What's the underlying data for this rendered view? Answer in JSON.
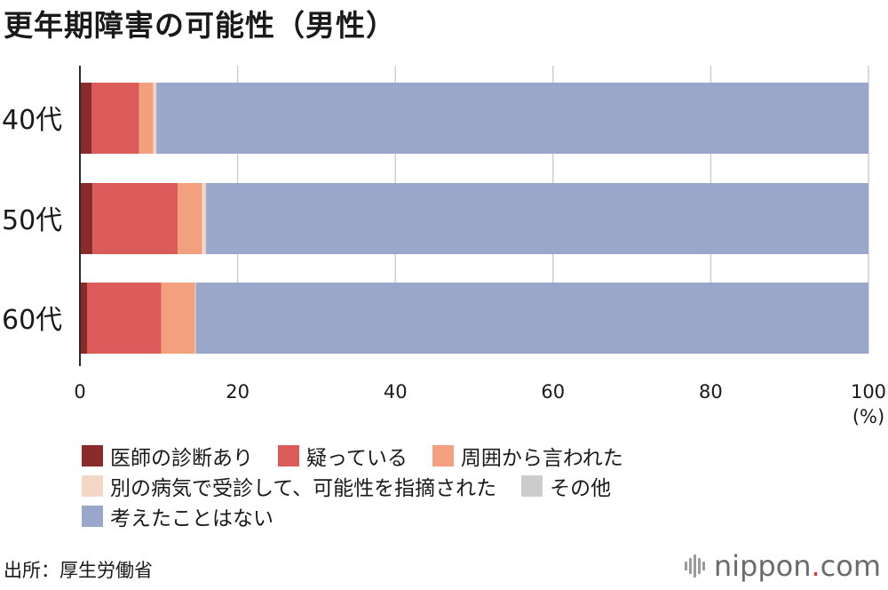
{
  "title": "更年期障害の可能性（男性）",
  "chart_data": {
    "type": "bar",
    "orientation": "horizontal",
    "stacked": true,
    "categories": [
      "40代",
      "50代",
      "60代"
    ],
    "series": [
      {
        "name": "医師の診断あり",
        "color": "#8b2a2a",
        "values": [
          1.5,
          1.6,
          0.9
        ]
      },
      {
        "name": "疑っている",
        "color": "#db5a5a",
        "values": [
          6.0,
          10.8,
          9.4
        ]
      },
      {
        "name": "周囲から言われた",
        "color": "#f2a07e",
        "values": [
          1.8,
          3.1,
          4.3
        ]
      },
      {
        "name": "別の病気で受診して、可能性を指摘された",
        "color": "#f3d8c8",
        "values": [
          0.3,
          0.4,
          0.1
        ]
      },
      {
        "name": "その他",
        "color": "#cccccc",
        "values": [
          0.1,
          0.1,
          0.0
        ]
      },
      {
        "name": "考えたことはない",
        "color": "#9aa7cb",
        "values": [
          90.3,
          84.0,
          85.3
        ]
      }
    ],
    "xlim": [
      0,
      100
    ],
    "xticks": [
      "0",
      "20",
      "40",
      "60",
      "80",
      "100"
    ],
    "unit_label": "(%)",
    "grid": true,
    "legend_placement": "bottom"
  },
  "legend_rows": [
    [
      0,
      1,
      2
    ],
    [
      3,
      4
    ],
    [
      5
    ]
  ],
  "source": "出所：厚生労働省",
  "brand": {
    "name": "nippon",
    "dot": ".",
    "suffix": "com"
  }
}
